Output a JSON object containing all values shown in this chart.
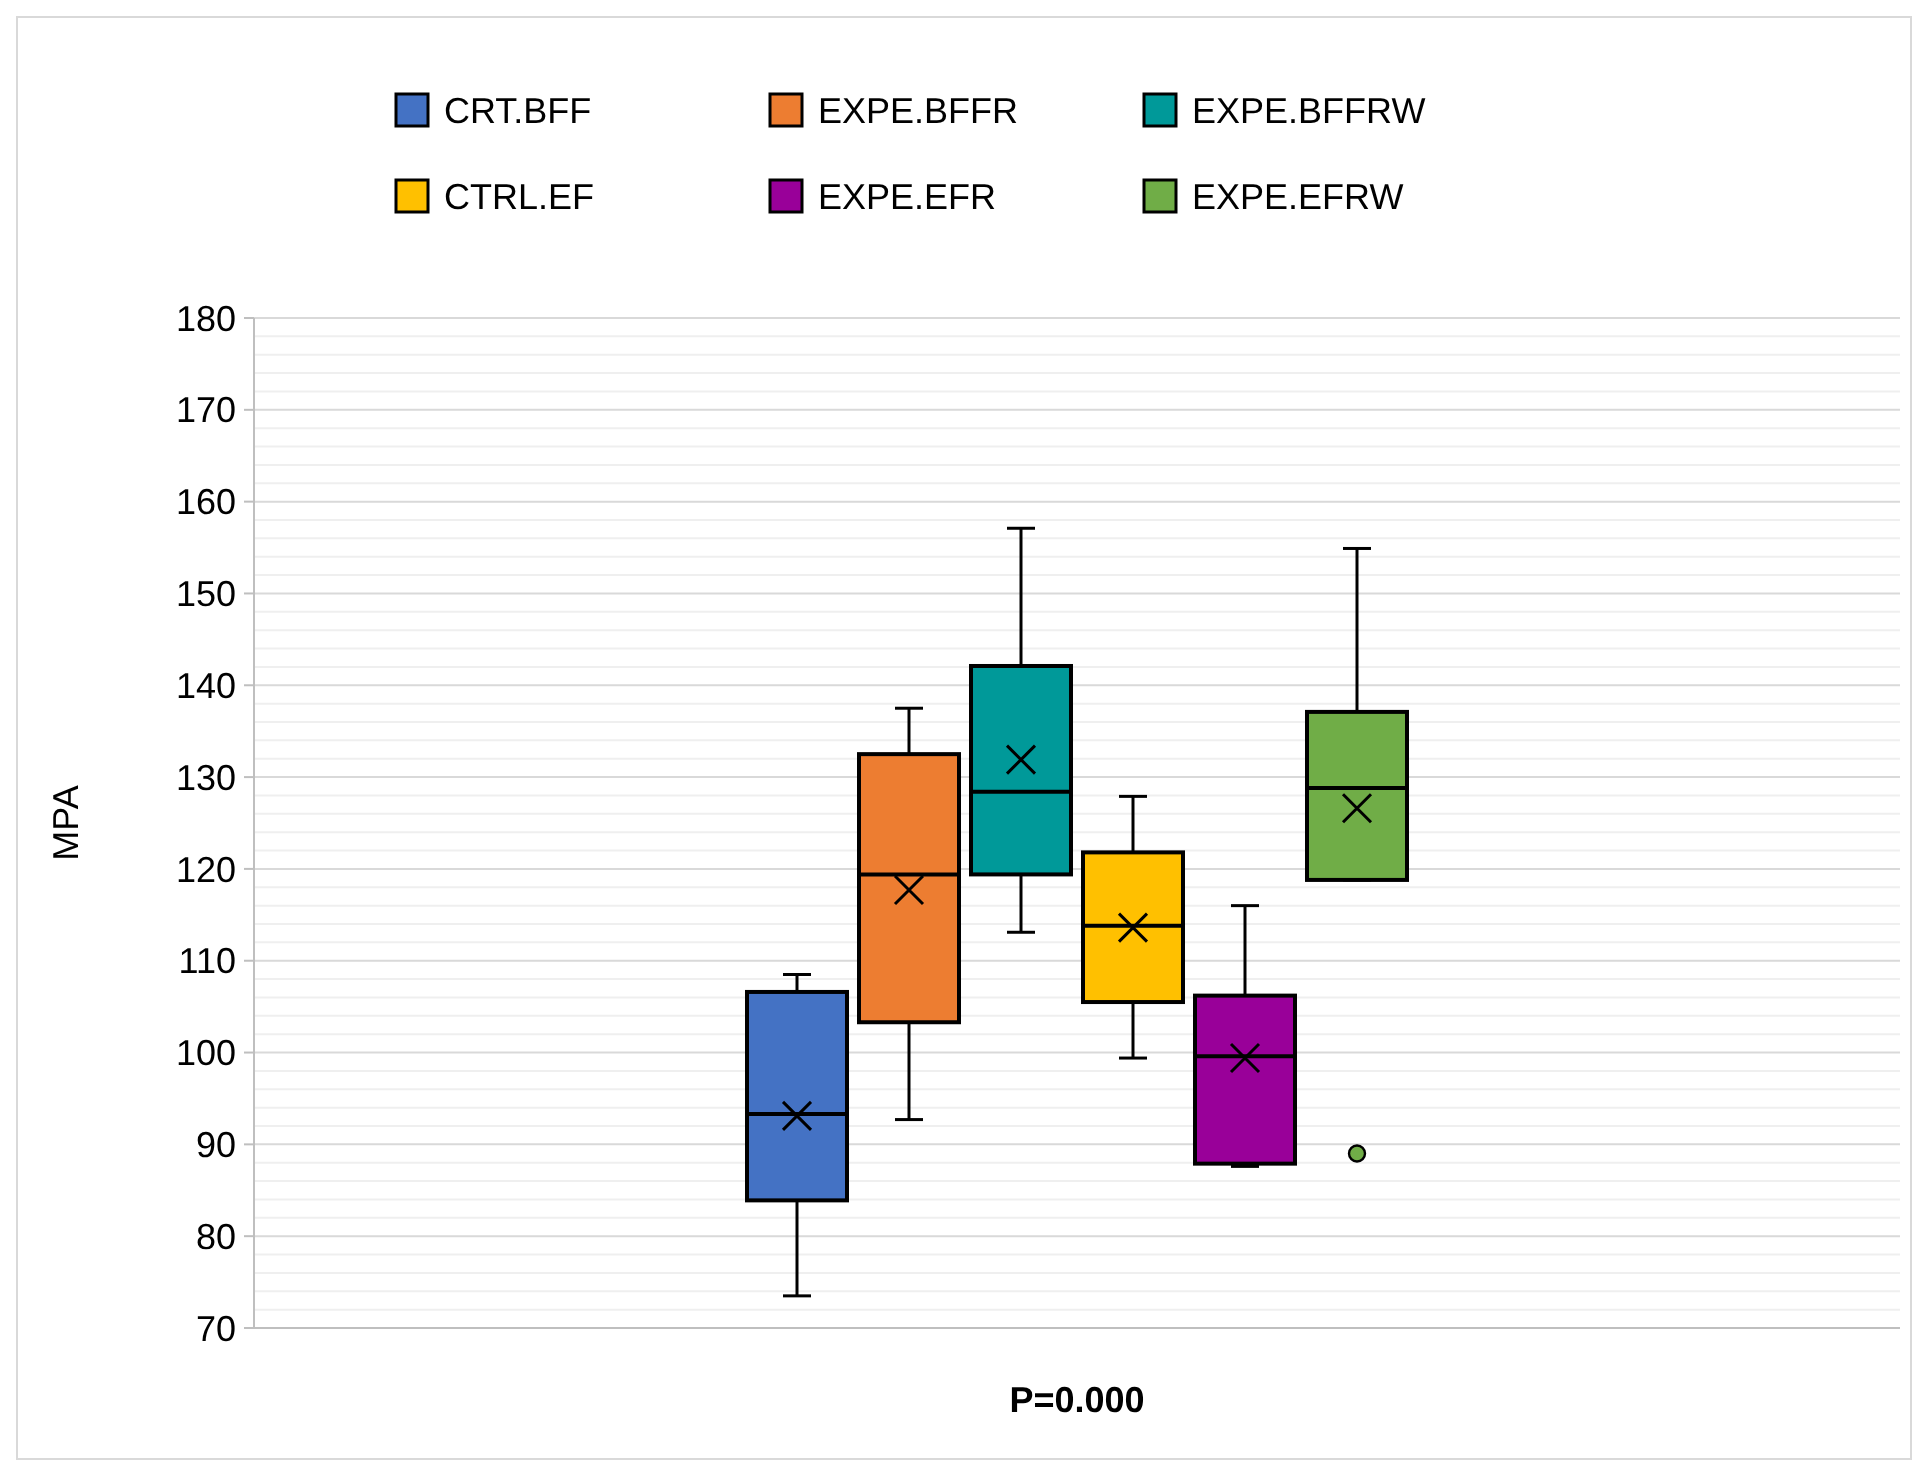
{
  "chart_data": {
    "type": "box",
    "ylabel": "MPA",
    "categories": [
      "P=0.000"
    ],
    "ylim": [
      70,
      180
    ],
    "yticks": [
      70,
      80,
      90,
      100,
      110,
      120,
      130,
      140,
      150,
      160,
      170,
      180
    ],
    "grid": "y",
    "legend": "top",
    "series": [
      {
        "name": "CRT.BFF",
        "color": "#4472c4",
        "boxes": [
          {
            "low": 73.5,
            "q1": 83.9,
            "median": 93.3,
            "q3": 106.6,
            "high": 108.5,
            "mean": 93.1
          }
        ]
      },
      {
        "name": "EXPE.BFFR",
        "color": "#ed7d31",
        "boxes": [
          {
            "low": 92.7,
            "q1": 103.3,
            "median": 119.4,
            "q3": 132.5,
            "high": 137.5,
            "mean": 117.7
          }
        ]
      },
      {
        "name": "EXPE.BFFRW",
        "color": "#009999",
        "boxes": [
          {
            "low": 113.1,
            "q1": 119.4,
            "median": 128.4,
            "q3": 142.1,
            "high": 157.1,
            "mean": 131.9
          }
        ]
      },
      {
        "name": "CTRL.EF",
        "color": "#ffc000",
        "boxes": [
          {
            "low": 99.4,
            "q1": 105.5,
            "median": 113.8,
            "q3": 121.8,
            "high": 127.9,
            "mean": 113.6
          }
        ]
      },
      {
        "name": "EXPE.EFR",
        "color": "#990099",
        "boxes": [
          {
            "low": 87.6,
            "q1": 87.9,
            "median": 99.6,
            "q3": 106.2,
            "high": 116,
            "mean": 99.4
          }
        ]
      },
      {
        "name": "EXPE.EFRW",
        "color": "#70ad47",
        "boxes": [
          {
            "low": 118.8,
            "q1": 118.8,
            "median": 128.8,
            "q3": 137.1,
            "high": 154.9,
            "mean": 126.6,
            "outliers": [
              89
            ]
          }
        ]
      }
    ]
  }
}
